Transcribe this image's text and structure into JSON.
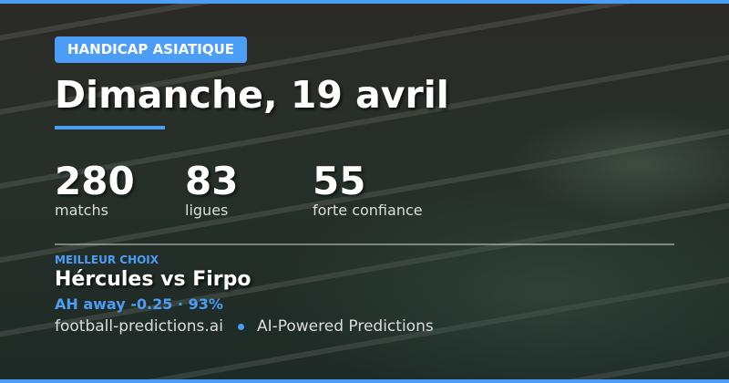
{
  "colors": {
    "accent": "#4c9df5",
    "text": "#ffffff"
  },
  "badge": "HANDICAP ASIATIQUE",
  "title": "Dimanche, 19 avril",
  "stats": [
    {
      "value": "280",
      "label": "matchs"
    },
    {
      "value": "83",
      "label": "ligues"
    },
    {
      "value": "55",
      "label": "forte confiance"
    }
  ],
  "best": {
    "kicker": "MEILLEUR CHOIX",
    "match": "Hércules vs Firpo",
    "pick": "AH away -0.25 · 93%"
  },
  "footer": {
    "site": "football-predictions.ai",
    "tagline": "AI-Powered Predictions"
  }
}
